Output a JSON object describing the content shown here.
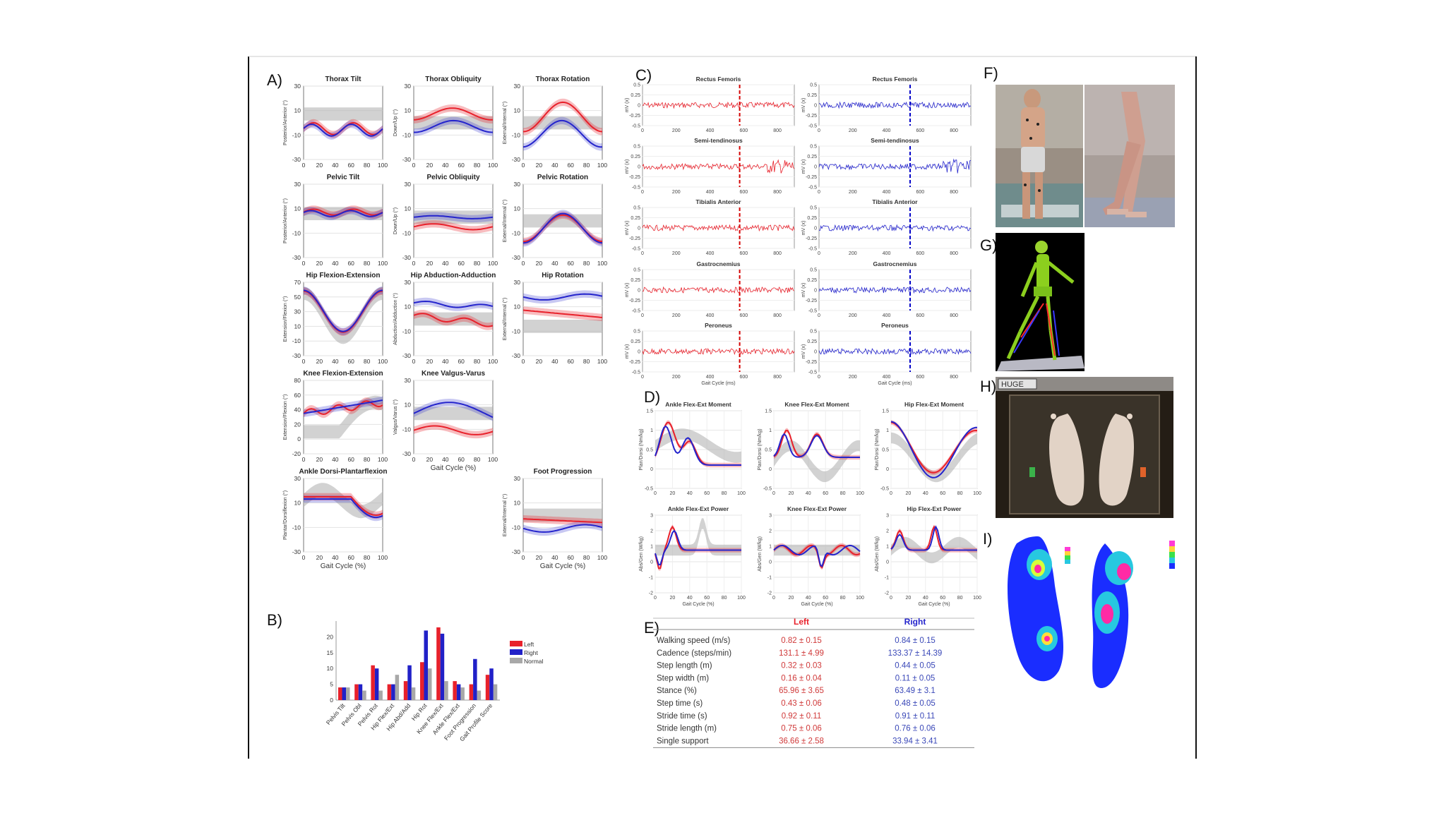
{
  "panels": {
    "A": {
      "label": "A)",
      "plots": [
        {
          "title": "Thorax Tilt",
          "ylabel": "Posterior/Anterior (°)",
          "yticks": [
            "30",
            "10",
            "-10",
            "-30"
          ],
          "xticks": [
            "0",
            "20",
            "40",
            "60",
            "80",
            "100"
          ],
          "xlabel": ""
        },
        {
          "title": "Thorax Obliquity",
          "ylabel": "Down/Up (°)",
          "yticks": [
            "30",
            "10",
            "-10",
            "-30"
          ],
          "xticks": [
            "0",
            "20",
            "40",
            "60",
            "80",
            "100"
          ],
          "xlabel": ""
        },
        {
          "title": "Thorax Rotation",
          "ylabel": "External/Internal (°)",
          "yticks": [
            "30",
            "10",
            "-10",
            "-30"
          ],
          "xticks": [
            "0",
            "20",
            "40",
            "60",
            "80",
            "100"
          ],
          "xlabel": ""
        },
        {
          "title": "Pelvic Tilt",
          "ylabel": "Posterior/Anterior (°)",
          "yticks": [
            "30",
            "10",
            "-10",
            "-30"
          ],
          "xticks": [
            "0",
            "20",
            "40",
            "60",
            "80",
            "100"
          ],
          "xlabel": ""
        },
        {
          "title": "Pelvic Obliquity",
          "ylabel": "Down/Up (°)",
          "yticks": [
            "30",
            "10",
            "-10",
            "-30"
          ],
          "xticks": [
            "0",
            "20",
            "40",
            "60",
            "80",
            "100"
          ],
          "xlabel": ""
        },
        {
          "title": "Pelvic Rotation",
          "ylabel": "External/Internal (°)",
          "yticks": [
            "30",
            "10",
            "-10",
            "-30"
          ],
          "xticks": [
            "0",
            "20",
            "40",
            "60",
            "80",
            "100"
          ],
          "xlabel": ""
        },
        {
          "title": "Hip Flexion-Extension",
          "ylabel": "Extension/Flexion (°)",
          "yticks": [
            "70",
            "50",
            "30",
            "10",
            "-10",
            "-30"
          ],
          "xticks": [
            "0",
            "20",
            "40",
            "60",
            "80",
            "100"
          ],
          "xlabel": ""
        },
        {
          "title": "Hip Abduction-Adduction",
          "ylabel": "Abduction/Adduction (°)",
          "yticks": [
            "30",
            "10",
            "-10",
            "-30"
          ],
          "xticks": [
            "0",
            "20",
            "40",
            "60",
            "80",
            "100"
          ],
          "xlabel": ""
        },
        {
          "title": "Hip Rotation",
          "ylabel": "External/Internal (°)",
          "yticks": [
            "30",
            "10",
            "-10",
            "-30"
          ],
          "xticks": [
            "0",
            "20",
            "40",
            "60",
            "80",
            "100"
          ],
          "xlabel": ""
        },
        {
          "title": "Knee Flexion-Extension",
          "ylabel": "Extension/Flexion (°)",
          "yticks": [
            "80",
            "60",
            "40",
            "20",
            "0",
            "-20"
          ],
          "xticks": [
            "0",
            "20",
            "40",
            "60",
            "80",
            "100"
          ],
          "xlabel": ""
        },
        {
          "title": "Knee Valgus-Varus",
          "ylabel": "Valgus/Varus (°)",
          "yticks": [
            "30",
            "10",
            "-10",
            "-30"
          ],
          "xticks": [
            "0",
            "20",
            "40",
            "60",
            "80",
            "100"
          ],
          "xlabel": "Gait Cycle (%)"
        },
        {
          "title": "Ankle Dorsi-Plantarflexion",
          "ylabel": "Plantar/Dorsiflexion (°)",
          "yticks": [
            "30",
            "10",
            "-10",
            "-30"
          ],
          "xticks": [
            "0",
            "20",
            "40",
            "60",
            "80",
            "100"
          ],
          "xlabel": "Gait Cycle (%)"
        },
        {
          "title": "Foot Progression",
          "ylabel": "External/Internal (°)",
          "yticks": [
            "30",
            "10",
            "-10",
            "-30"
          ],
          "xticks": [
            "0",
            "20",
            "40",
            "60",
            "80",
            "100"
          ],
          "xlabel": "Gait Cycle (%)"
        }
      ]
    },
    "B": {
      "label": "B)"
    },
    "C": {
      "label": "C)",
      "titles": [
        "Rectus Femoris",
        "Semi-tendinosus",
        "Tibialis Anterior",
        "Gastrocnemius",
        "Peroneus"
      ],
      "ylabel": "mV (x)",
      "yticks": [
        "0.5",
        "0.25",
        "0",
        "-0.25",
        "-0.5"
      ],
      "xticks": [
        "0",
        "200",
        "400",
        "600",
        "800"
      ],
      "xlabel": "Gait Cycle (ms)"
    },
    "D": {
      "label": "D)",
      "moment_titles": [
        "Ankle Flex-Ext Moment",
        "Knee Flex-Ext Moment",
        "Hip Flex-Ext Moment"
      ],
      "power_titles": [
        "Ankle Flex-Ext Power",
        "Knee Flex-Ext Power",
        "Hip Flex-Ext Power"
      ],
      "moment_ylabel": "Plan/Dorsi (Nm/kg)",
      "power_ylabel": "Abs/Gen (W/kg)",
      "moment_yticks": [
        "1.5",
        "1",
        "0.5",
        "0",
        "-0.5"
      ],
      "power_yticks": [
        "3",
        "2",
        "1",
        "0",
        "-1",
        "-2"
      ],
      "xticks": [
        "0",
        "20",
        "40",
        "60",
        "80",
        "100"
      ],
      "xlabel": "Gait Cycle (%)"
    },
    "E": {
      "label": "E)",
      "headers": [
        "",
        "Left",
        "Right"
      ],
      "rows": [
        [
          "Walking speed (m/s)",
          "0.82 ± 0.15",
          "0.84 ± 0.15"
        ],
        [
          "Cadence (steps/min)",
          "131.1 ± 4.99",
          "133.37 ± 14.39"
        ],
        [
          "Step length (m)",
          "0.32 ± 0.03",
          "0.44 ± 0.05"
        ],
        [
          "Step width (m)",
          "0.16 ± 0.04",
          "0.11 ± 0.05"
        ],
        [
          "Stance (%)",
          "65.96 ± 3.65",
          "63.49 ± 3.1"
        ],
        [
          "Step time (s)",
          "0.43 ± 0.06",
          "0.48 ± 0.05"
        ],
        [
          "Stride time (s)",
          "0.92 ± 0.11",
          "0.91 ± 0.11"
        ],
        [
          "Stride length (m)",
          "0.75 ± 0.06",
          "0.76 ± 0.06"
        ],
        [
          "Single support",
          "36.66 ± 2.58",
          "33.94 ± 3.41"
        ]
      ]
    },
    "F": {
      "label": "F)"
    },
    "G": {
      "label": "G)"
    },
    "H": {
      "label": "H)",
      "badge": "HUGE"
    },
    "I": {
      "label": "I)"
    }
  },
  "chart_data": {
    "type": "bar",
    "categories": [
      "Pelvis Tilt",
      "Pelvis Obl",
      "Pelvis Rot",
      "Hip Flex/Ext",
      "Hip Abd/Add",
      "Hip Rot",
      "Knee Flex/Ext",
      "Ankle Flex/Ext",
      "Foot Progression",
      "Gait Profile Score"
    ],
    "series": [
      {
        "name": "Left",
        "values": [
          4,
          5,
          11,
          5,
          6,
          12,
          23,
          6,
          5,
          8
        ]
      },
      {
        "name": "Right",
        "values": [
          4,
          5,
          10,
          5,
          11,
          22,
          21,
          5,
          13,
          10
        ]
      },
      {
        "name": "Normal",
        "values": [
          4,
          3,
          3,
          8,
          4,
          10,
          6,
          4,
          3,
          5
        ]
      }
    ],
    "yticks": [
      "0",
      "5",
      "10",
      "15",
      "20"
    ],
    "ylim": [
      0,
      25
    ],
    "legend_position": "right",
    "colors": {
      "Left": "#e8212b",
      "Right": "#2121c8",
      "Normal": "#a8a8a8"
    }
  },
  "colors": {
    "left": "#e8212b",
    "right": "#2424cc",
    "normal": "#b4b4b4"
  }
}
